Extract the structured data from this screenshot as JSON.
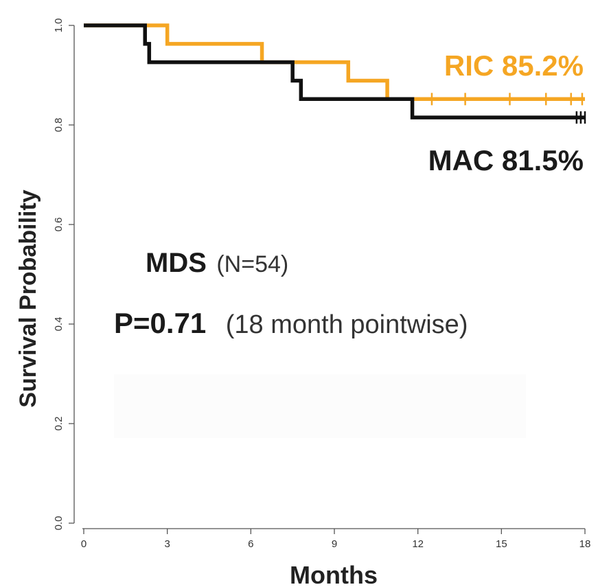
{
  "chart_data": {
    "type": "line",
    "xlabel": "Months",
    "ylabel": "Survival Probability",
    "xlim": [
      0,
      18
    ],
    "ylim": [
      0,
      1
    ],
    "x_ticks": [
      "0",
      "3",
      "6",
      "9",
      "12",
      "15",
      "18"
    ],
    "y_ticks": [
      "0.0",
      "0.2",
      "0.4",
      "0.6",
      "0.8",
      "1.0"
    ],
    "grid": false,
    "series": [
      {
        "name": "RIC",
        "color": "#f5a623",
        "steps": [
          [
            0,
            1.0
          ],
          [
            3.0,
            0.963
          ],
          [
            6.4,
            0.926
          ],
          [
            9.5,
            0.889
          ],
          [
            10.9,
            0.852
          ],
          [
            18,
            0.852
          ]
        ],
        "censor_x": [
          12.5,
          13.7,
          15.3,
          16.6,
          17.5,
          17.9
        ]
      },
      {
        "name": "MAC",
        "color": "#111111",
        "steps": [
          [
            0,
            1.0
          ],
          [
            2.2,
            0.963
          ],
          [
            2.35,
            0.926
          ],
          [
            7.5,
            0.889
          ],
          [
            7.8,
            0.852
          ],
          [
            11.8,
            0.815
          ],
          [
            18,
            0.815
          ]
        ],
        "censor_x": [
          17.7,
          17.85,
          18.0
        ]
      }
    ],
    "annotations": {
      "ric_label": "RIC 85.2%",
      "mac_label": "MAC 81.5%",
      "group_label": "MDS",
      "group_n": "(N=54)",
      "p_value": "P=0.71",
      "p_note": "(18 month pointwise)"
    }
  }
}
